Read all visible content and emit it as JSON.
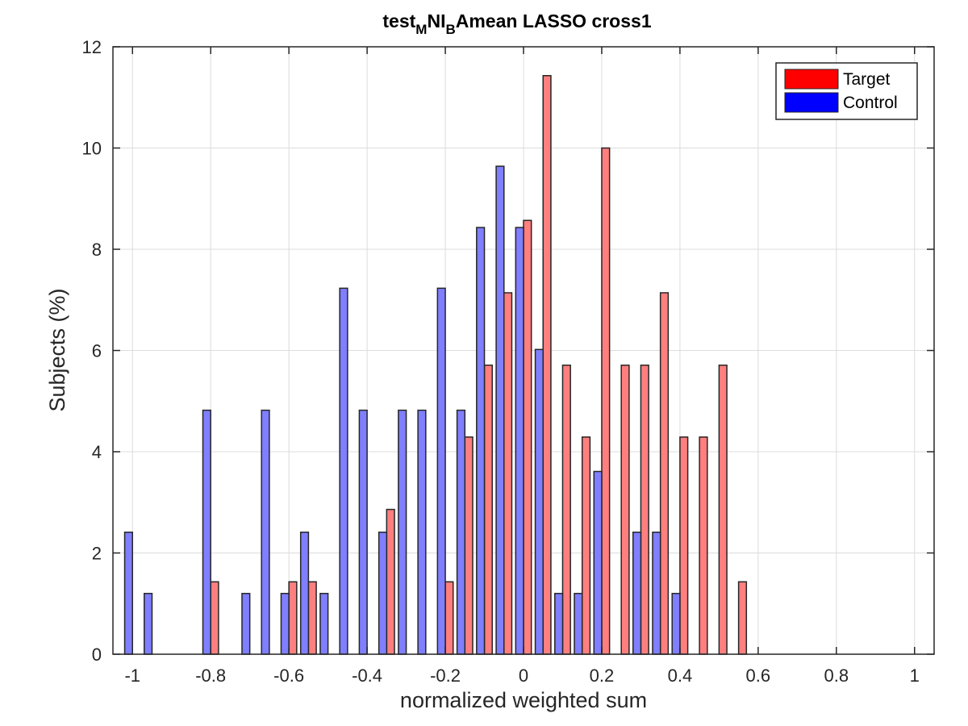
{
  "chart_data": {
    "type": "bar",
    "title": {
      "base1": "test",
      "sub1": "M",
      "base2": "NI",
      "sub2": "B",
      "base3": "Amean LASSO cross1"
    },
    "xlabel": "normalized weighted sum",
    "ylabel": "Subjects (%)",
    "xlim": [
      -1.05,
      1.05
    ],
    "ylim": [
      0,
      12
    ],
    "xticks": [
      -1,
      -0.8,
      -0.6,
      -0.4,
      -0.2,
      0,
      0.2,
      0.4,
      0.6,
      0.8,
      1
    ],
    "xtick_labels": [
      "-1",
      "-0.8",
      "-0.6",
      "-0.4",
      "-0.2",
      "0",
      "0.2",
      "0.4",
      "0.6",
      "0.8",
      "1"
    ],
    "yticks": [
      0,
      2,
      4,
      6,
      8,
      10,
      12
    ],
    "ytick_labels": [
      "0",
      "2",
      "4",
      "6",
      "8",
      "10",
      "12"
    ],
    "grid": true,
    "legend_position": "top-right",
    "bin_width": 0.05,
    "bar_width_fraction": 0.4,
    "series": [
      {
        "name": "Target",
        "color": "#ff7f7f",
        "legend_color": "#ff0000",
        "side": "right",
        "x": [
          -1,
          -0.95,
          -0.9,
          -0.85,
          -0.8,
          -0.75,
          -0.7,
          -0.65,
          -0.6,
          -0.55,
          -0.5,
          -0.45,
          -0.4,
          -0.35,
          -0.3,
          -0.25,
          -0.2,
          -0.15,
          -0.1,
          -0.05,
          0,
          0.05,
          0.1,
          0.15,
          0.2,
          0.25,
          0.3,
          0.35,
          0.4,
          0.45,
          0.5,
          0.55
        ],
        "values": [
          0,
          0,
          0,
          0,
          1.43,
          0,
          0,
          0,
          1.43,
          1.43,
          0,
          0,
          0,
          2.86,
          0,
          0,
          1.43,
          4.29,
          5.71,
          7.14,
          8.57,
          11.43,
          5.71,
          4.29,
          10,
          5.71,
          5.71,
          7.14,
          4.29,
          4.29,
          5.71,
          1.43
        ]
      },
      {
        "name": "Control",
        "color": "#7f7fff",
        "legend_color": "#0000ff",
        "side": "left",
        "x": [
          -1,
          -0.95,
          -0.9,
          -0.85,
          -0.8,
          -0.75,
          -0.7,
          -0.65,
          -0.6,
          -0.55,
          -0.5,
          -0.45,
          -0.4,
          -0.35,
          -0.3,
          -0.25,
          -0.2,
          -0.15,
          -0.1,
          -0.05,
          0,
          0.05,
          0.1,
          0.15,
          0.2,
          0.25,
          0.3,
          0.35,
          0.4
        ],
        "values": [
          2.41,
          1.2,
          0,
          0,
          4.82,
          0,
          1.2,
          4.82,
          1.2,
          2.41,
          1.2,
          7.23,
          4.82,
          2.41,
          4.82,
          4.82,
          7.23,
          4.82,
          8.43,
          9.64,
          8.43,
          6.02,
          1.2,
          1.2,
          3.61,
          0,
          2.41,
          2.41,
          1.2
        ]
      }
    ]
  }
}
